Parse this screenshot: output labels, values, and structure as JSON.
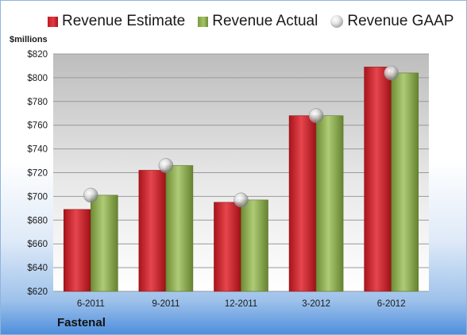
{
  "legend": {
    "estimate": "Revenue Estimate",
    "actual": "Revenue Actual",
    "gaap": "Revenue GAAP"
  },
  "unit_label": "$millions",
  "company": "Fastenal",
  "colors": {
    "estimate": "#d42a31",
    "actual": "#94b45a",
    "gaap": "#b8b8b8"
  },
  "chart_data": {
    "type": "bar",
    "categories": [
      "6-2011",
      "9-2011",
      "12-2011",
      "3-2012",
      "6-2012"
    ],
    "series": [
      {
        "name": "Revenue Estimate",
        "kind": "bar",
        "values": [
          689,
          722,
          695,
          768,
          809
        ]
      },
      {
        "name": "Revenue Actual",
        "kind": "bar",
        "values": [
          701,
          726,
          697,
          768,
          804
        ]
      },
      {
        "name": "Revenue GAAP",
        "kind": "marker",
        "values": [
          701,
          726,
          697,
          768,
          804
        ]
      }
    ],
    "ylabel": "$millions",
    "ylim": [
      620,
      820
    ],
    "yticks": [
      620,
      640,
      660,
      680,
      700,
      720,
      740,
      760,
      780,
      800,
      820
    ],
    "ytick_labels": [
      "$620",
      "$640",
      "$660",
      "$680",
      "$700",
      "$720",
      "$740",
      "$760",
      "$780",
      "$800",
      "$820"
    ],
    "grid": true,
    "legend_position": "top"
  }
}
